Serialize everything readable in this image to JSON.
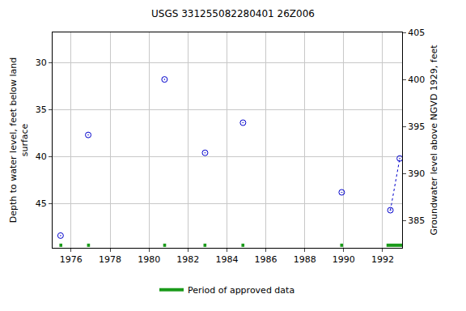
{
  "chart_data": {
    "type": "scatter",
    "title": "USGS 331255082280401 26Z006",
    "y_label": [
      "Depth to water level, feet below land",
      "surface"
    ],
    "y2_label": "Groundwater level above NGVD 1929, feet",
    "xlim": [
      1975.05,
      1993.0
    ],
    "xticks": [
      1976,
      1978,
      1980,
      1982,
      1984,
      1986,
      1988,
      1990,
      1992
    ],
    "ylim": [
      49.7,
      26.8
    ],
    "yticks": [
      30,
      35,
      40,
      45
    ],
    "y2lim": [
      382.1,
      405.0
    ],
    "y2ticks": [
      385,
      390,
      395,
      400,
      405
    ],
    "grid": true,
    "legend": "bottom",
    "x": [
      1975.46,
      1976.88,
      1980.8,
      1982.88,
      1984.83,
      1989.9,
      1992.4,
      1992.88
    ],
    "series": [
      {
        "type": "scatter",
        "marker": "circle-open-dot",
        "color": "#0000cc",
        "values": [
          48.4,
          37.7,
          31.8,
          39.6,
          36.4,
          43.8,
          45.7,
          40.2
        ]
      },
      {
        "type": "line",
        "line_style": "dotted",
        "color": "#0000cc",
        "values": [
          null,
          null,
          null,
          null,
          null,
          null,
          45.7,
          40.2
        ]
      },
      {
        "type": "period",
        "name": "Period of approved data",
        "color": "#1a9a1a",
        "periods": [
          [
            1975.4,
            1975.55
          ],
          [
            1976.82,
            1976.97
          ],
          [
            1980.73,
            1980.88
          ],
          [
            1982.8,
            1982.95
          ],
          [
            1984.75,
            1984.9
          ],
          [
            1989.82,
            1989.97
          ],
          [
            1992.2,
            1993.0
          ]
        ]
      }
    ]
  }
}
